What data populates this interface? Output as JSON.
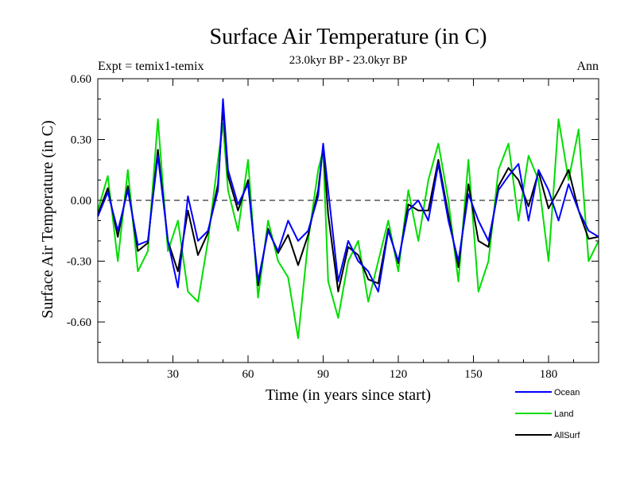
{
  "chart_data": {
    "type": "line",
    "title": "Surface Air Temperature (in C)",
    "subtitle": "23.0kyr BP - 23.0kyr BP",
    "left_annotation": "Expt = temix1-temix",
    "right_annotation": "Ann",
    "xlabel": "Time (in years since start)",
    "ylabel": "Surface Air Temperature (in C)",
    "xlim": [
      0,
      200
    ],
    "ylim": [
      -0.8,
      0.6
    ],
    "x_ticks": [
      30,
      60,
      90,
      120,
      150,
      180
    ],
    "x_tick_labels": [
      "30",
      "60",
      "90",
      "120",
      "150",
      "180"
    ],
    "y_ticks": [
      0.6,
      0.3,
      0.0,
      -0.3,
      -0.6
    ],
    "y_tick_labels": [
      "0.60",
      "0.30",
      "0.00",
      "-0.30",
      "-0.60"
    ],
    "zero_line": true,
    "grid": false,
    "legend_position": "bottom-right",
    "x": [
      0,
      4,
      8,
      12,
      16,
      20,
      24,
      28,
      32,
      36,
      40,
      44,
      48,
      50,
      52,
      56,
      60,
      64,
      68,
      72,
      76,
      80,
      84,
      88,
      90,
      92,
      96,
      100,
      104,
      108,
      112,
      116,
      120,
      124,
      128,
      132,
      136,
      140,
      144,
      148,
      152,
      156,
      160,
      164,
      168,
      172,
      176,
      180,
      184,
      188,
      192,
      196,
      200
    ],
    "series": [
      {
        "name": "Ocean",
        "color": "#0000ff",
        "values": [
          -0.08,
          0.04,
          -0.15,
          0.05,
          -0.22,
          -0.2,
          0.22,
          -0.2,
          -0.43,
          0.02,
          -0.2,
          -0.15,
          0.05,
          0.5,
          0.15,
          -0.02,
          0.08,
          -0.4,
          -0.15,
          -0.25,
          -0.1,
          -0.2,
          -0.15,
          0.02,
          0.28,
          0.05,
          -0.4,
          -0.2,
          -0.3,
          -0.35,
          -0.45,
          -0.15,
          -0.3,
          -0.05,
          0.0,
          -0.1,
          0.18,
          -0.1,
          -0.3,
          0.03,
          -0.1,
          -0.2,
          0.05,
          0.12,
          0.18,
          -0.1,
          0.15,
          0.05,
          -0.1,
          0.08,
          -0.05,
          -0.15,
          -0.18
        ]
      },
      {
        "name": "Land",
        "color": "#00dd00",
        "values": [
          -0.05,
          0.12,
          -0.3,
          0.15,
          -0.35,
          -0.25,
          0.4,
          -0.25,
          -0.1,
          -0.45,
          -0.5,
          -0.2,
          0.2,
          0.38,
          0.05,
          -0.15,
          0.2,
          -0.48,
          -0.1,
          -0.3,
          -0.38,
          -0.68,
          -0.2,
          0.15,
          0.25,
          -0.4,
          -0.58,
          -0.3,
          -0.2,
          -0.5,
          -0.3,
          -0.1,
          -0.35,
          0.05,
          -0.2,
          0.1,
          0.28,
          0.0,
          -0.4,
          0.2,
          -0.45,
          -0.3,
          0.15,
          0.28,
          -0.1,
          0.22,
          0.1,
          -0.3,
          0.4,
          0.1,
          0.35,
          -0.3,
          -0.2
        ]
      },
      {
        "name": "AllSurf",
        "color": "#000000",
        "values": [
          -0.07,
          0.06,
          -0.18,
          0.07,
          -0.25,
          -0.21,
          0.25,
          -0.2,
          -0.35,
          -0.05,
          -0.27,
          -0.16,
          0.08,
          0.46,
          0.12,
          -0.05,
          0.1,
          -0.42,
          -0.14,
          -0.26,
          -0.17,
          -0.32,
          -0.17,
          0.05,
          0.27,
          -0.07,
          -0.45,
          -0.23,
          -0.27,
          -0.39,
          -0.41,
          -0.14,
          -0.31,
          -0.02,
          -0.05,
          -0.05,
          0.2,
          -0.07,
          -0.33,
          0.08,
          -0.2,
          -0.23,
          0.07,
          0.16,
          0.1,
          -0.03,
          0.14,
          -0.04,
          0.05,
          0.15,
          -0.05,
          -0.19,
          -0.18
        ]
      }
    ]
  }
}
